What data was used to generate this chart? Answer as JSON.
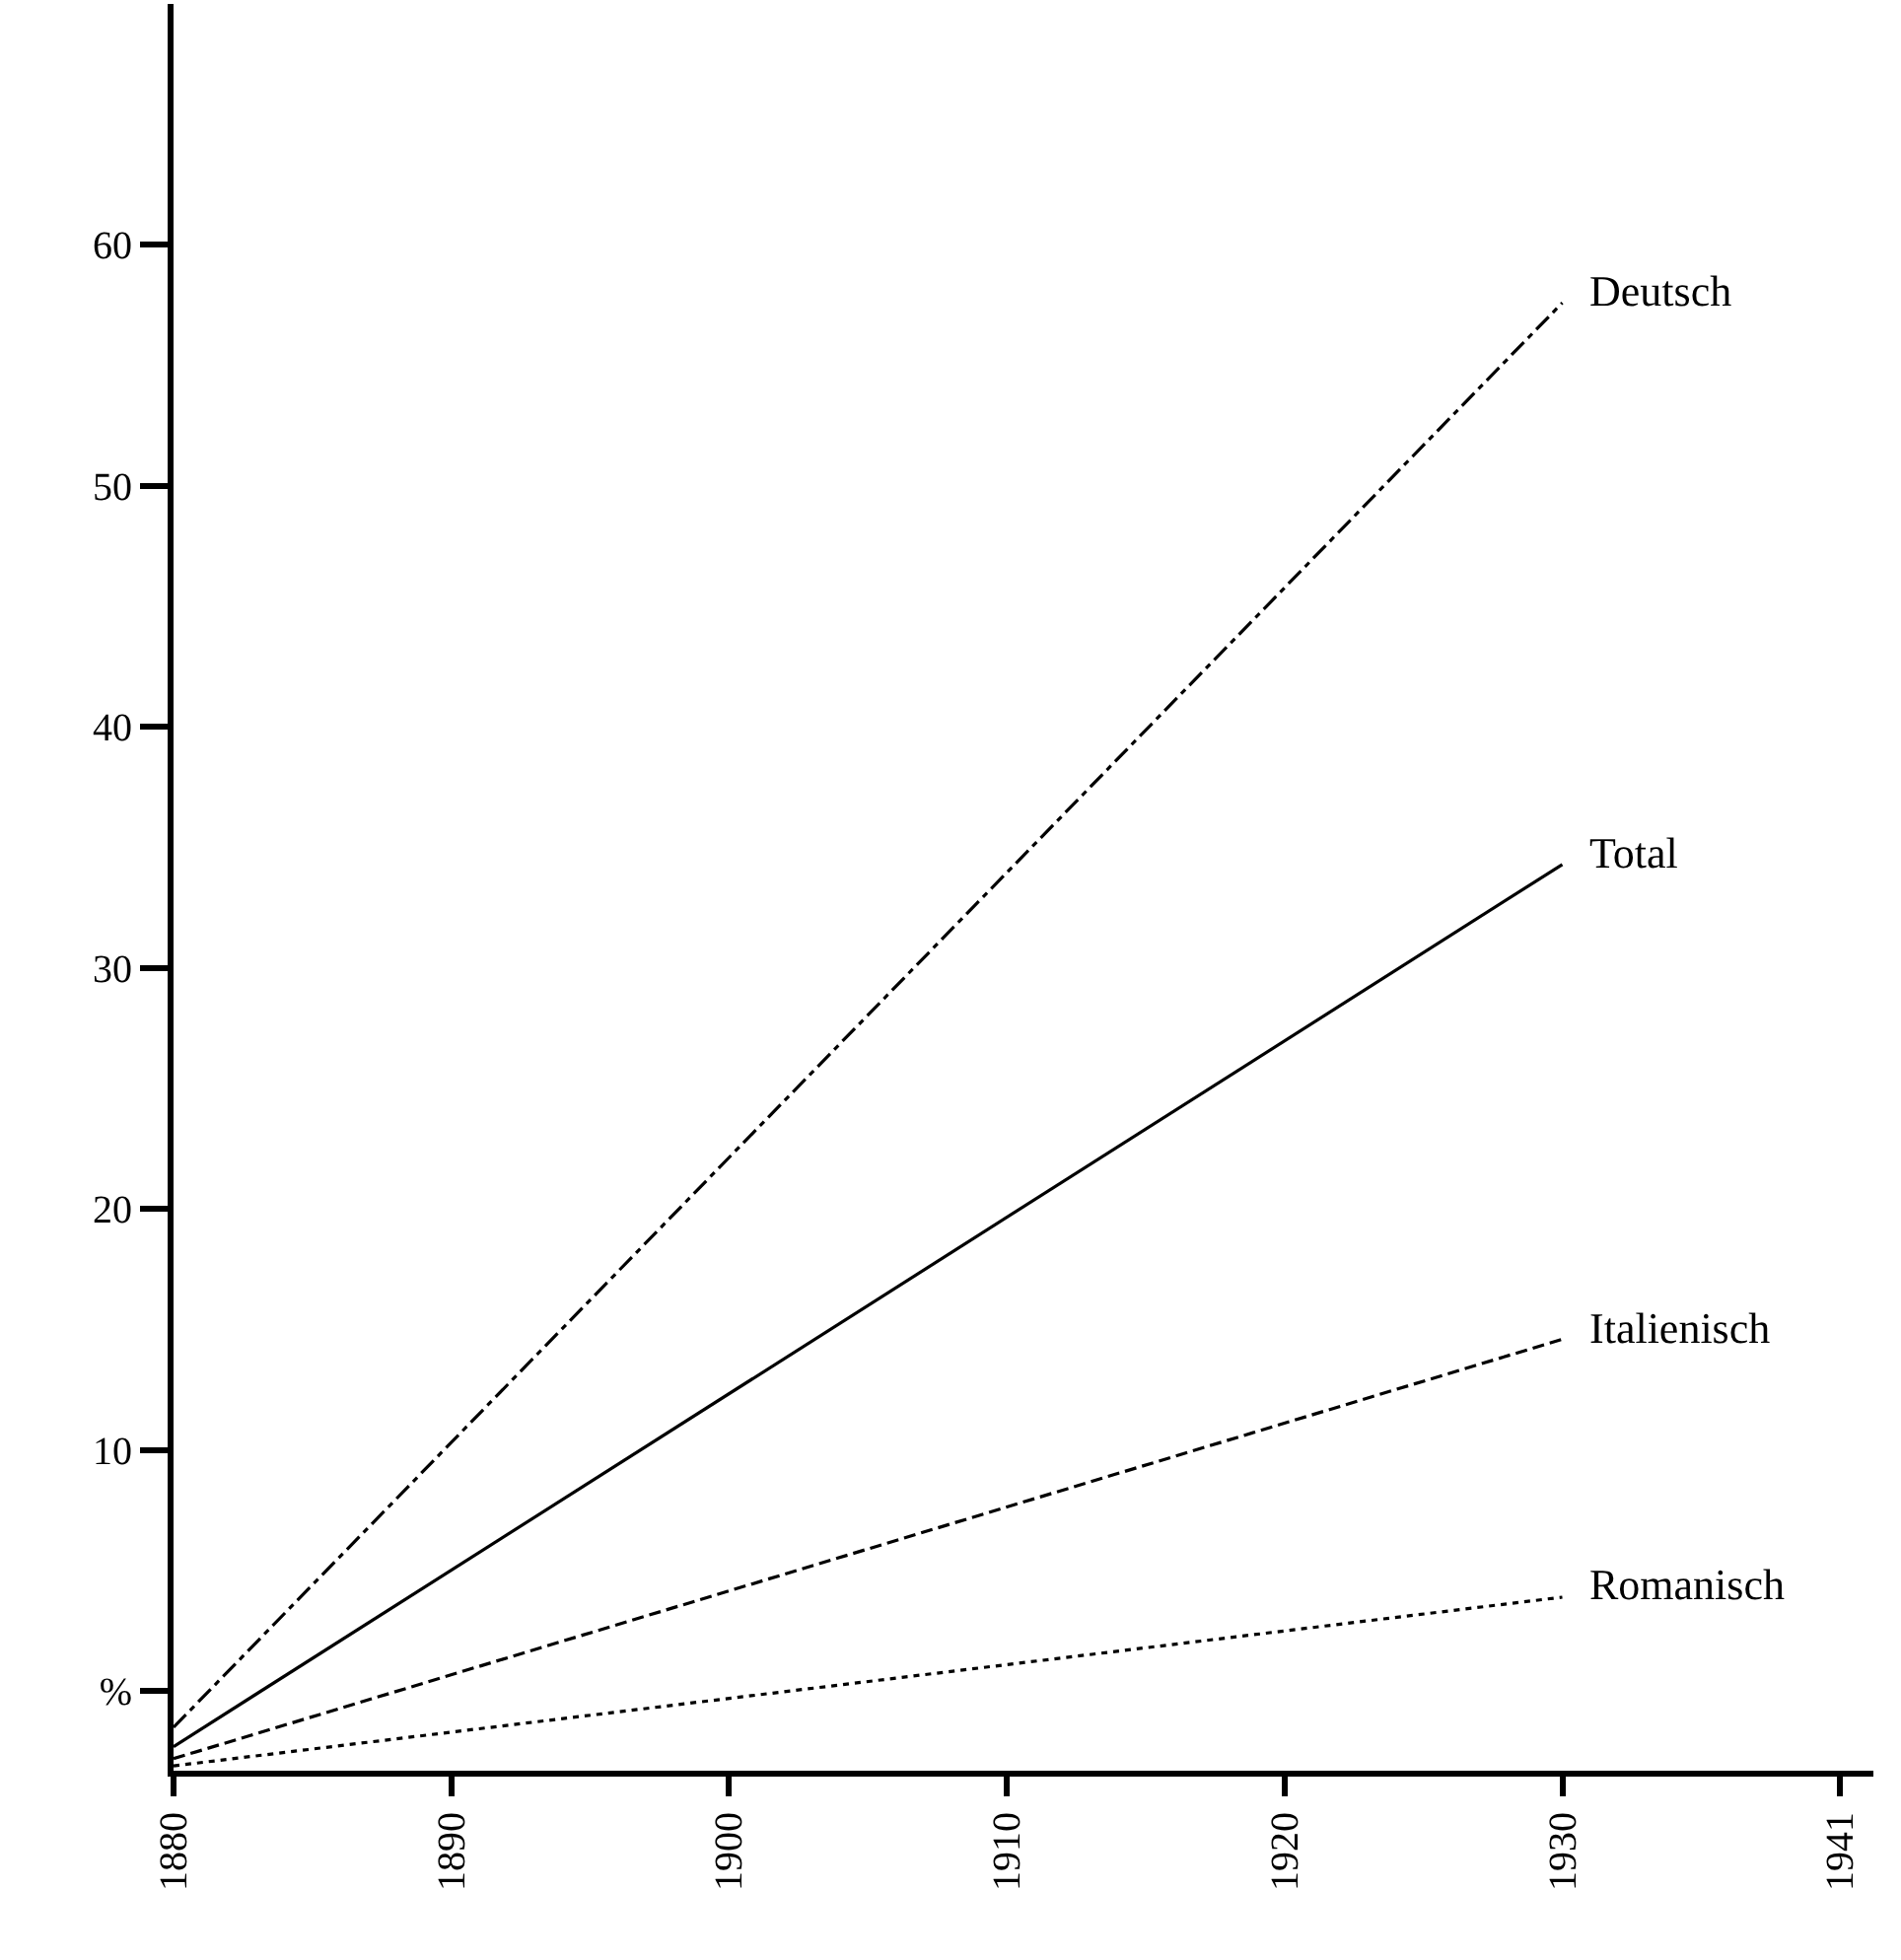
{
  "chart_data": {
    "type": "line",
    "categories": [
      "1880",
      "1890",
      "1900",
      "1910",
      "1920",
      "1930",
      "1941"
    ],
    "ylim": [
      -3.3,
      70
    ],
    "yticks": [
      {
        "value": 0,
        "label": "%"
      },
      10,
      20,
      30,
      40,
      50,
      60
    ],
    "legend": false,
    "marker": "none",
    "series": [
      {
        "name": "Deutsch",
        "color": "#000000",
        "line_style": "dashdot",
        "values": [
          -1.5,
          null,
          null,
          null,
          null,
          57.6,
          null
        ]
      },
      {
        "name": "Total",
        "color": "#000000",
        "line_style": "solid",
        "values": [
          -2.3,
          null,
          null,
          null,
          null,
          34.3,
          null
        ]
      },
      {
        "name": "Italienisch",
        "color": "#000000",
        "line_style": "dashed",
        "values": [
          -2.8,
          null,
          null,
          null,
          null,
          14.6,
          null
        ]
      },
      {
        "name": "Romanisch",
        "color": "#000000",
        "line_style": "dotted",
        "values": [
          -3.1,
          null,
          null,
          null,
          null,
          3.9,
          null
        ]
      }
    ]
  }
}
